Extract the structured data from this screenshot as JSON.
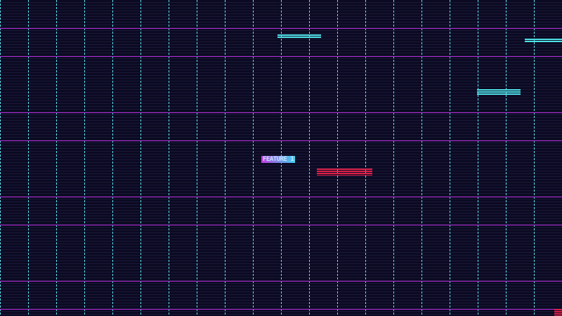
{
  "scene": {
    "label": "FEATURE 1",
    "colors": {
      "background": "#0b0a22",
      "grid_vertical": "#5ce6f0",
      "grid_horizontal": "#b42ad8",
      "platform_cyan": "#4fe3e8",
      "platform_red": "#e0204a"
    }
  }
}
